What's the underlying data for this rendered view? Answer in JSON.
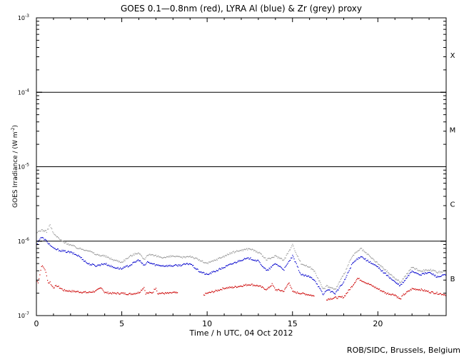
{
  "chart_data": {
    "type": "scatter",
    "title": "GOES 0.1—0.8nm (red), LYRA Al (blue) & Zr (grey) proxy",
    "xlabel": "Time / h UTC, 04 Oct 2012",
    "ylabel": "GOES Irradiance / (W m",
    "ylabel_exponent": "-2",
    "ylabel_suffix": ")",
    "xlim": [
      0,
      24
    ],
    "ylim_log10": [
      -7,
      -3
    ],
    "yscale": "log",
    "x_ticks": [
      0,
      5,
      10,
      15,
      20
    ],
    "y_tick_exponents": [
      -7,
      -6,
      -5,
      -4,
      -3
    ],
    "y_tick_base": "10",
    "flare_class_lines_log10": [
      -6,
      -5,
      -4
    ],
    "flare_classes": [
      {
        "label": "B",
        "center_log10": -6.5
      },
      {
        "label": "C",
        "center_log10": -5.5
      },
      {
        "label": "M",
        "center_log10": -4.5
      },
      {
        "label": "X",
        "center_log10": -3.5
      }
    ],
    "series": [
      {
        "color": "#cc0000",
        "points": [
          [
            0,
            -6.53
          ],
          [
            0.1,
            -6.55
          ],
          [
            0.2,
            -6.45
          ],
          [
            0.3,
            -6.33
          ],
          [
            0.4,
            -6.35
          ],
          [
            0.5,
            -6.38
          ],
          [
            0.6,
            -6.47
          ],
          [
            0.7,
            -6.56
          ],
          [
            0.8,
            -6.55
          ],
          [
            0.9,
            -6.6
          ],
          [
            1.0,
            -6.62
          ],
          [
            1.2,
            -6.6
          ],
          [
            1.4,
            -6.63
          ],
          [
            1.6,
            -6.66
          ],
          [
            2.0,
            -6.67
          ],
          [
            2.5,
            -6.68
          ],
          [
            3.0,
            -6.69
          ],
          [
            3.5,
            -6.67
          ],
          [
            3.8,
            -6.62
          ],
          [
            4.0,
            -6.69
          ],
          [
            4.5,
            -6.7
          ],
          [
            5.0,
            -6.7
          ],
          [
            5.5,
            -6.71
          ],
          [
            6.0,
            -6.69
          ],
          [
            6.3,
            -6.62
          ],
          [
            6.4,
            -6.7
          ],
          [
            6.8,
            -6.69
          ],
          [
            7.0,
            -6.62
          ],
          [
            7.1,
            -6.7
          ],
          [
            7.5,
            -6.7
          ],
          [
            7.8,
            -6.7
          ],
          [
            8.0,
            -6.69
          ],
          [
            8.3,
            -6.7
          ],
          [
            8.4,
            null
          ],
          [
            9.8,
            -6.72
          ],
          [
            10.0,
            -6.7
          ],
          [
            10.5,
            -6.67
          ],
          [
            11.0,
            -6.63
          ],
          [
            11.5,
            -6.62
          ],
          [
            12.0,
            -6.6
          ],
          [
            12.5,
            -6.58
          ],
          [
            13.0,
            -6.6
          ],
          [
            13.5,
            -6.65
          ],
          [
            13.8,
            -6.58
          ],
          [
            14.0,
            -6.65
          ],
          [
            14.5,
            -6.67
          ],
          [
            14.8,
            -6.55
          ],
          [
            15.0,
            -6.68
          ],
          [
            15.5,
            -6.7
          ],
          [
            16.0,
            -6.72
          ],
          [
            16.3,
            -6.74
          ],
          [
            16.5,
            null
          ],
          [
            17.0,
            -6.78
          ],
          [
            17.5,
            -6.76
          ],
          [
            18.0,
            -6.75
          ],
          [
            18.5,
            -6.6
          ],
          [
            18.8,
            -6.5
          ],
          [
            19.0,
            -6.52
          ],
          [
            19.5,
            -6.58
          ],
          [
            20.0,
            -6.64
          ],
          [
            20.5,
            -6.7
          ],
          [
            21.0,
            -6.72
          ],
          [
            21.3,
            -6.78
          ],
          [
            21.5,
            -6.72
          ],
          [
            22.0,
            -6.64
          ],
          [
            22.5,
            -6.65
          ],
          [
            23.0,
            -6.68
          ],
          [
            23.5,
            -6.7
          ],
          [
            24.0,
            -6.72
          ]
        ]
      },
      {
        "color": "#0000cc",
        "points": [
          [
            0,
            -6.05
          ],
          [
            0.1,
            -6.0
          ],
          [
            0.2,
            -5.97
          ],
          [
            0.3,
            -5.95
          ],
          [
            0.5,
            -5.98
          ],
          [
            0.8,
            -6.05
          ],
          [
            1.0,
            -6.1
          ],
          [
            1.5,
            -6.13
          ],
          [
            2.0,
            -6.15
          ],
          [
            2.5,
            -6.2
          ],
          [
            3.0,
            -6.3
          ],
          [
            3.5,
            -6.33
          ],
          [
            4.0,
            -6.3
          ],
          [
            4.5,
            -6.35
          ],
          [
            5.0,
            -6.37
          ],
          [
            5.5,
            -6.32
          ],
          [
            6.0,
            -6.25
          ],
          [
            6.3,
            -6.33
          ],
          [
            6.5,
            -6.28
          ],
          [
            7.0,
            -6.32
          ],
          [
            7.5,
            -6.33
          ],
          [
            8.0,
            -6.33
          ],
          [
            8.5,
            -6.32
          ],
          [
            9.0,
            -6.3
          ],
          [
            9.5,
            -6.4
          ],
          [
            10.0,
            -6.45
          ],
          [
            10.5,
            -6.4
          ],
          [
            11.0,
            -6.35
          ],
          [
            11.5,
            -6.3
          ],
          [
            12.0,
            -6.25
          ],
          [
            12.5,
            -6.23
          ],
          [
            13.0,
            -6.27
          ],
          [
            13.5,
            -6.4
          ],
          [
            14.0,
            -6.3
          ],
          [
            14.5,
            -6.38
          ],
          [
            15.0,
            -6.2
          ],
          [
            15.5,
            -6.45
          ],
          [
            16.0,
            -6.48
          ],
          [
            16.3,
            -6.52
          ],
          [
            16.5,
            -6.6
          ],
          [
            16.8,
            -6.72
          ],
          [
            17.0,
            -6.65
          ],
          [
            17.5,
            -6.7
          ],
          [
            18.0,
            -6.55
          ],
          [
            18.5,
            -6.3
          ],
          [
            19.0,
            -6.2
          ],
          [
            19.5,
            -6.28
          ],
          [
            20.0,
            -6.35
          ],
          [
            20.5,
            -6.45
          ],
          [
            21.0,
            -6.55
          ],
          [
            21.3,
            -6.6
          ],
          [
            21.5,
            -6.55
          ],
          [
            22.0,
            -6.4
          ],
          [
            22.5,
            -6.45
          ],
          [
            23.0,
            -6.42
          ],
          [
            23.5,
            -6.48
          ],
          [
            24.0,
            -6.45
          ]
        ]
      },
      {
        "color": "#999999",
        "points": [
          [
            0,
            -5.9
          ],
          [
            0.1,
            -5.87
          ],
          [
            0.3,
            -5.85
          ],
          [
            0.6,
            -5.87
          ],
          [
            0.8,
            -5.78
          ],
          [
            1.0,
            -5.9
          ],
          [
            1.5,
            -6.0
          ],
          [
            2.0,
            -6.05
          ],
          [
            2.5,
            -6.1
          ],
          [
            3.0,
            -6.12
          ],
          [
            3.5,
            -6.18
          ],
          [
            4.0,
            -6.2
          ],
          [
            4.5,
            -6.25
          ],
          [
            5.0,
            -6.28
          ],
          [
            5.5,
            -6.2
          ],
          [
            6.0,
            -6.15
          ],
          [
            6.3,
            -6.25
          ],
          [
            6.5,
            -6.18
          ],
          [
            7.0,
            -6.2
          ],
          [
            7.5,
            -6.22
          ],
          [
            8.0,
            -6.2
          ],
          [
            8.5,
            -6.22
          ],
          [
            9.0,
            -6.2
          ],
          [
            9.5,
            -6.25
          ],
          [
            10.0,
            -6.3
          ],
          [
            10.5,
            -6.25
          ],
          [
            11.0,
            -6.2
          ],
          [
            11.5,
            -6.15
          ],
          [
            12.0,
            -6.12
          ],
          [
            12.5,
            -6.1
          ],
          [
            13.0,
            -6.15
          ],
          [
            13.5,
            -6.25
          ],
          [
            14.0,
            -6.2
          ],
          [
            14.5,
            -6.25
          ],
          [
            15.0,
            -6.05
          ],
          [
            15.5,
            -6.3
          ],
          [
            16.0,
            -6.35
          ],
          [
            16.3,
            -6.4
          ],
          [
            16.5,
            -6.5
          ],
          [
            16.8,
            -6.65
          ],
          [
            17.0,
            -6.6
          ],
          [
            17.5,
            -6.65
          ],
          [
            18.0,
            -6.45
          ],
          [
            18.5,
            -6.2
          ],
          [
            19.0,
            -6.1
          ],
          [
            19.5,
            -6.2
          ],
          [
            20.0,
            -6.3
          ],
          [
            20.5,
            -6.4
          ],
          [
            21.0,
            -6.5
          ],
          [
            21.3,
            -6.55
          ],
          [
            21.5,
            -6.5
          ],
          [
            22.0,
            -6.35
          ],
          [
            22.5,
            -6.4
          ],
          [
            23.0,
            -6.38
          ],
          [
            23.5,
            -6.42
          ],
          [
            24.0,
            -6.4
          ]
        ]
      }
    ]
  },
  "footer": {
    "credit": "ROB/SIDC, Brussels, Belgium"
  }
}
